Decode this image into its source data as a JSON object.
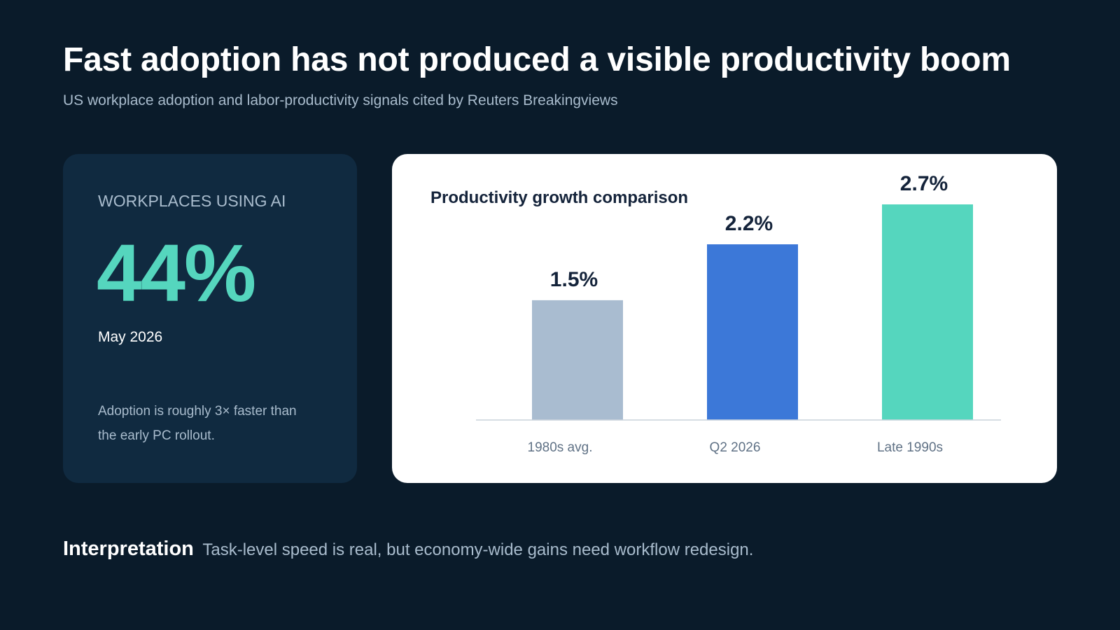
{
  "header": {
    "title": "Fast adoption has not produced a visible productivity boom",
    "subtitle": "US workplace adoption and labor-productivity signals cited by Reuters Breakingviews"
  },
  "stat_card": {
    "label": "WORKPLACES USING AI",
    "value": "44%",
    "date": "May 2026",
    "note": "Adoption is roughly 3× faster than the early PC rollout."
  },
  "chart_data": {
    "type": "bar",
    "title": "Productivity growth comparison",
    "categories": [
      "1980s avg.",
      "Q2 2026",
      "Late 1990s"
    ],
    "values": [
      1.5,
      2.2,
      2.7
    ],
    "value_labels": [
      "1.5%",
      "2.2%",
      "2.7%"
    ],
    "colors": [
      "#a9bcd0",
      "#3c78d8",
      "#55d6be"
    ],
    "ylim": [
      0,
      2.7
    ],
    "grid": false,
    "xlabel": "",
    "ylabel": ""
  },
  "footer": {
    "label": "Interpretation",
    "text": "Task-level speed is real, but economy-wide gains need workflow redesign."
  },
  "colors": {
    "background": "#0a1b2a",
    "card": "#102a40",
    "accent": "#55d6be",
    "blue": "#3c78d8"
  }
}
